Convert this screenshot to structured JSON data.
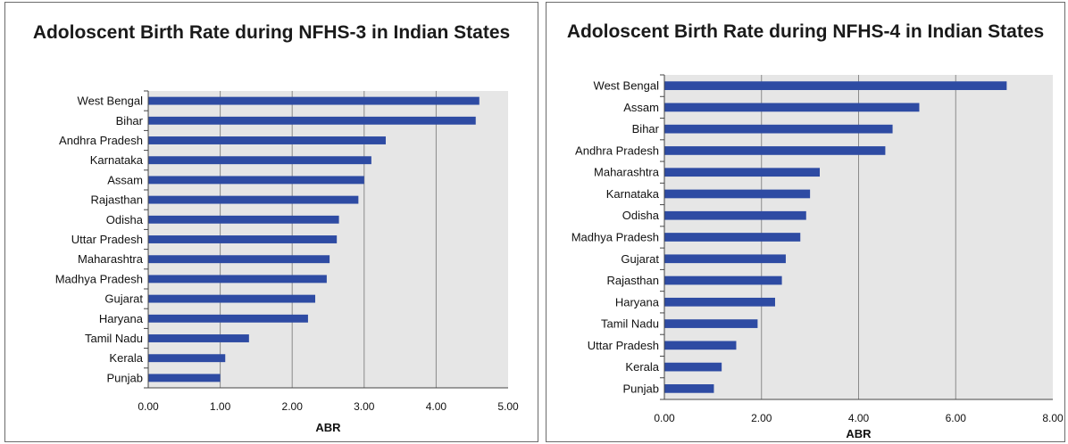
{
  "chart_data": [
    {
      "type": "bar",
      "orientation": "horizontal",
      "title": "Adoloscent Birth Rate during NFHS-3 in Indian States",
      "xlabel": "ABR",
      "ylabel": "",
      "xlim": [
        0,
        5
      ],
      "xticks": [
        "0.00",
        "1.00",
        "2.00",
        "3.00",
        "4.00",
        "5.00"
      ],
      "categories": [
        "West Bengal",
        "Bihar",
        "Andhra Pradesh",
        "Karnataka",
        "Assam",
        "Rajasthan",
        "Odisha",
        "Uttar Pradesh",
        "Maharashtra",
        "Madhya Pradesh",
        "Gujarat",
        "Haryana",
        "Tamil Nadu",
        "Kerala",
        "Punjab"
      ],
      "values": [
        4.6,
        4.55,
        3.3,
        3.1,
        3.0,
        2.92,
        2.65,
        2.62,
        2.52,
        2.48,
        2.32,
        2.22,
        1.4,
        1.07,
        1.0
      ],
      "grid": "vertical",
      "bar_color": "#2e4ba3",
      "plot_background": "#e6e6e6"
    },
    {
      "type": "bar",
      "orientation": "horizontal",
      "title": "Adoloscent Birth Rate during NFHS-4 in Indian States",
      "xlabel": "ABR",
      "ylabel": "",
      "xlim": [
        0,
        8
      ],
      "xticks": [
        "0.00",
        "2.00",
        "4.00",
        "6.00",
        "8.00"
      ],
      "categories": [
        "West Bengal",
        "Assam",
        "Bihar",
        "Andhra Pradesh",
        "Maharashtra",
        "Karnataka",
        "Odisha",
        "Madhya Pradesh",
        "Gujarat",
        "Rajasthan",
        "Haryana",
        "Tamil Nadu",
        "Uttar Pradesh",
        "Kerala",
        "Punjab"
      ],
      "values": [
        7.05,
        5.25,
        4.7,
        4.55,
        3.2,
        3.0,
        2.92,
        2.8,
        2.5,
        2.42,
        2.28,
        1.92,
        1.48,
        1.18,
        1.02
      ],
      "grid": "vertical",
      "bar_color": "#2e4ba3",
      "plot_background": "#e6e6e6"
    }
  ]
}
